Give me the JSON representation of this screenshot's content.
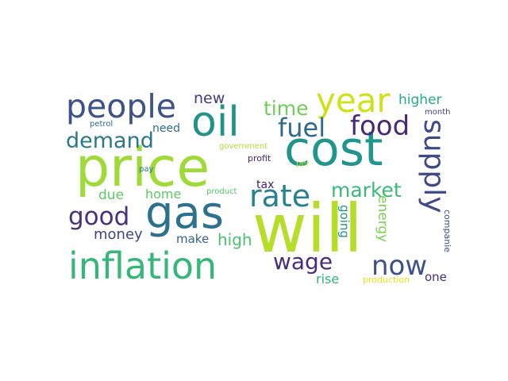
{
  "words": [
    {
      "text": "will",
      "color": "#b5de2b"
    },
    {
      "text": "price",
      "color": "#a0da39"
    },
    {
      "text": "cost",
      "color": "#1f968b"
    },
    {
      "text": "gas",
      "color": "#2c728e"
    },
    {
      "text": "inflation",
      "color": "#35b779"
    },
    {
      "text": "oil",
      "color": "#21918c"
    },
    {
      "text": "people",
      "color": "#3b528b"
    },
    {
      "text": "year",
      "color": "#d0e11c"
    },
    {
      "text": "supply",
      "color": "#3e4989"
    },
    {
      "text": "food",
      "color": "#482878"
    },
    {
      "text": "rate",
      "color": "#26828e"
    },
    {
      "text": "fuel",
      "color": "#31688e"
    },
    {
      "text": "now",
      "color": "#3b528b"
    },
    {
      "text": "good",
      "color": "#46327e"
    },
    {
      "text": "demand",
      "color": "#2a788e"
    },
    {
      "text": "wage",
      "color": "#472d7b"
    },
    {
      "text": "market",
      "color": "#3aba76"
    },
    {
      "text": "time",
      "color": "#6ece58"
    },
    {
      "text": "high",
      "color": "#4ac16d"
    },
    {
      "text": "energy",
      "color": "#7ad151"
    },
    {
      "text": "money",
      "color": "#414487"
    },
    {
      "text": "higher",
      "color": "#25ac82"
    },
    {
      "text": "new",
      "color": "#443a83"
    },
    {
      "text": "due",
      "color": "#5ec962"
    },
    {
      "text": "home",
      "color": "#5ec962"
    },
    {
      "text": "going",
      "color": "#21918c"
    },
    {
      "text": "make",
      "color": "#33638d"
    },
    {
      "text": "rise",
      "color": "#2fb47c"
    },
    {
      "text": "one",
      "color": "#472d7b"
    },
    {
      "text": "need",
      "color": "#2e6e8e"
    },
    {
      "text": "tax",
      "color": "#481f70"
    },
    {
      "text": "companie",
      "color": "#3e4a89"
    },
    {
      "text": "production",
      "color": "#e5e419"
    },
    {
      "text": "month",
      "color": "#433e85"
    },
    {
      "text": "profit",
      "color": "#482173"
    },
    {
      "text": "petrol",
      "color": "#2e6e8e"
    },
    {
      "text": "government",
      "color": "#addc30"
    },
    {
      "text": "pay",
      "color": "#2a788e"
    },
    {
      "text": "product",
      "color": "#52c569"
    },
    {
      "text": "per",
      "color": "#bddf26"
    }
  ]
}
